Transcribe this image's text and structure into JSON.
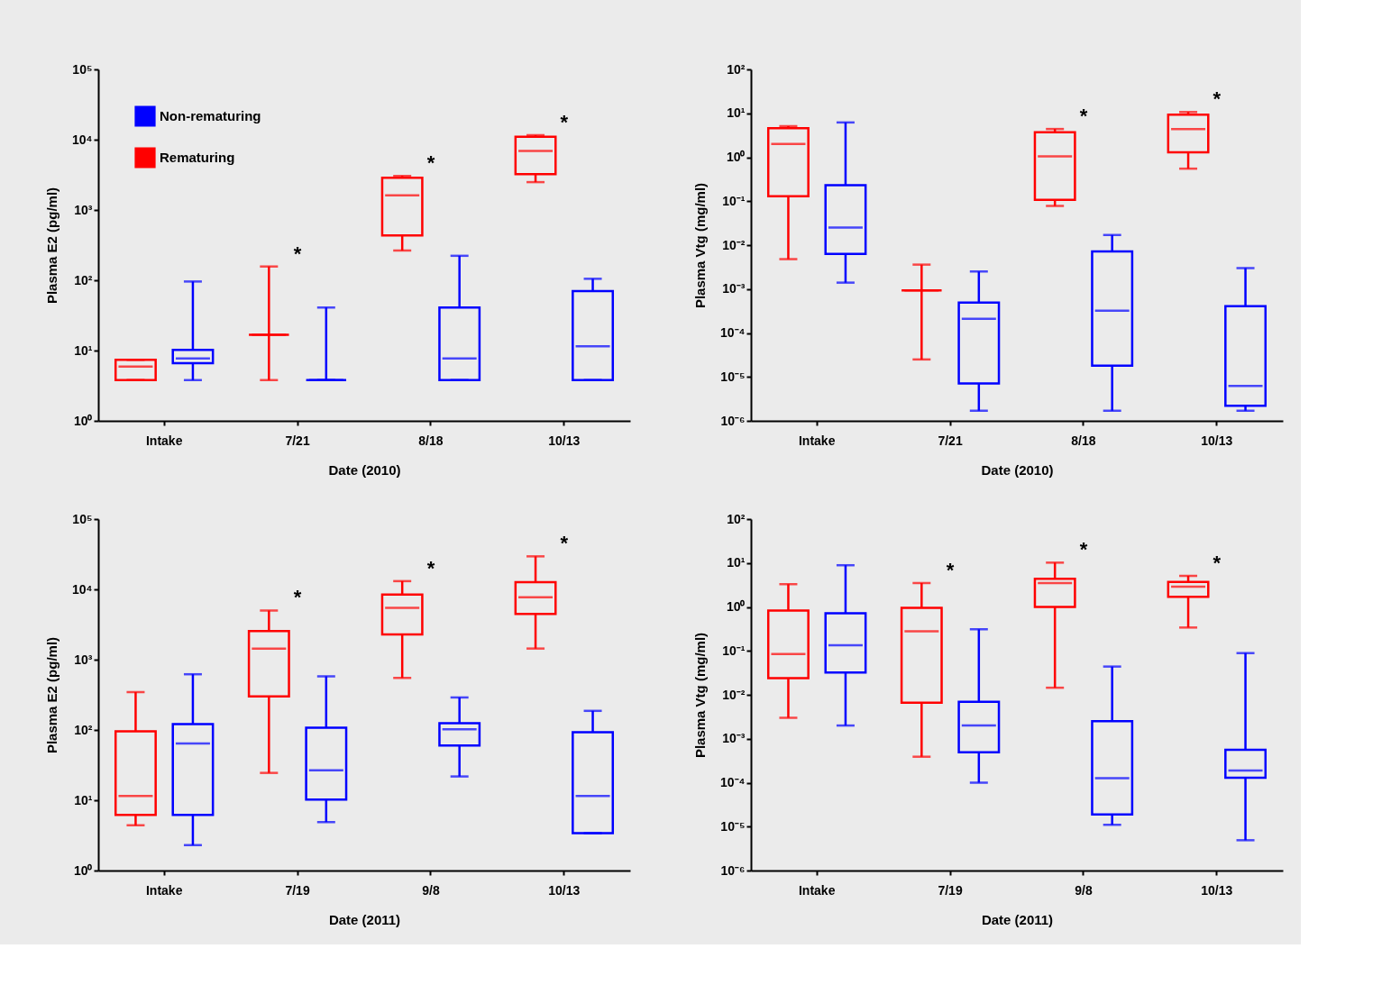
{
  "chart_data": [
    {
      "type": "box",
      "categories": [
        "Intake",
        "7/21",
        "8/18",
        "10/13"
      ],
      "xlabel": "Date (2010)",
      "ylabel": "Plasma E2 (pg/ml)",
      "log": true,
      "legend": "top left",
      "ylim": [
        1,
        100000
      ],
      "yticks": [
        {
          "value": 1,
          "label": "10⁰"
        },
        {
          "value": 10,
          "label": "10¹"
        },
        {
          "value": 100,
          "label": "10²"
        },
        {
          "value": 1000,
          "label": "10³"
        },
        {
          "value": 10000,
          "label": "10⁴"
        },
        {
          "value": 100000,
          "label": "10⁵"
        }
      ],
      "series": [
        {
          "name": "Non-rematuring",
          "color": "#0000ff",
          "boxes": [
            {
              "low": 3.8,
              "q1": 6.6,
              "median": 7.7,
              "q3": 10.2,
              "high": 96
            },
            {
              "low": 3.8,
              "q1": 3.8,
              "median": 3.8,
              "q3": 3.8,
              "high": 41
            },
            {
              "low": 3.8,
              "q1": 3.8,
              "median": 7.7,
              "q3": 41,
              "high": 223
            },
            {
              "low": 3.8,
              "q1": 3.8,
              "median": 11.5,
              "q3": 70,
              "high": 105
            }
          ]
        },
        {
          "name": "Rematuring",
          "color": "#ff0000",
          "boxes": [
            {
              "low": 3.8,
              "q1": 3.8,
              "median": 5.9,
              "q3": 7.4,
              "high": 7.4
            },
            {
              "low": 3.8,
              "q1": 16.8,
              "median": 16.8,
              "q3": 16.8,
              "high": 157
            },
            {
              "low": 265,
              "q1": 435,
              "median": 1610,
              "q3": 2880,
              "high": 3050
            },
            {
              "low": 2490,
              "q1": 3240,
              "median": 6900,
              "q3": 11000,
              "high": 11600
            }
          ]
        }
      ],
      "annotations": [
        "*",
        "*",
        "*"
      ]
    },
    {
      "type": "box",
      "categories": [
        "Intake",
        "7/21",
        "8/18",
        "10/13"
      ],
      "xlabel": "Date (2010)",
      "ylabel": "Plasma Vtg (mg/ml)",
      "log": true,
      "ylim": [
        1e-06,
        100
      ],
      "yticks": [
        {
          "value": 1e-06,
          "label": "10⁻⁶"
        },
        {
          "value": 1e-05,
          "label": "10⁻⁵"
        },
        {
          "value": 0.0001,
          "label": "10⁻⁴"
        },
        {
          "value": 0.001,
          "label": "10⁻³"
        },
        {
          "value": 0.01,
          "label": "10⁻²"
        },
        {
          "value": 0.1,
          "label": "10⁻¹"
        },
        {
          "value": 1,
          "label": "10⁰"
        },
        {
          "value": 10,
          "label": "10¹"
        },
        {
          "value": 100,
          "label": "10²"
        }
      ],
      "series": [
        {
          "color": "#0000ff",
          "boxes": [
            {
              "low": 0.0014,
              "q1": 0.0063,
              "median": 0.025,
              "q3": 0.23,
              "high": 6.2
            },
            {
              "low": 1.7e-06,
              "q1": 7.1e-06,
              "median": 0.00021,
              "q3": 0.00049,
              "high": 0.0025
            },
            {
              "low": 1.7e-06,
              "q1": 1.8e-05,
              "median": 0.00032,
              "q3": 0.0072,
              "high": 0.017
            },
            {
              "low": 1.7e-06,
              "q1": 2.2e-06,
              "median": 6.2e-06,
              "q3": 0.00041,
              "high": 0.003
            }
          ]
        },
        {
          "color": "#ff0000",
          "boxes": [
            {
              "low": 0.0048,
              "q1": 0.13,
              "median": 2.0,
              "q3": 4.6,
              "high": 5.1
            },
            {
              "low": 2.5e-05,
              "q1": 0.00093,
              "median": 0.00093,
              "q3": 0.00093,
              "high": 0.0036
            },
            {
              "low": 0.078,
              "q1": 0.107,
              "median": 1.05,
              "q3": 3.7,
              "high": 4.4
            },
            {
              "low": 0.55,
              "q1": 1.3,
              "median": 4.4,
              "q3": 9.3,
              "high": 10.7
            }
          ]
        }
      ],
      "annotations": [
        "*",
        "*"
      ]
    },
    {
      "type": "box",
      "categories": [
        "Intake",
        "7/19",
        "9/8",
        "10/13"
      ],
      "xlabel": "Date (2011)",
      "ylabel": "Plasma E2 (pg/ml)",
      "log": true,
      "ylim": [
        1,
        100000
      ],
      "yticks": [
        {
          "value": 1,
          "label": "10⁰"
        },
        {
          "value": 10,
          "label": "10¹"
        },
        {
          "value": 100,
          "label": "10²"
        },
        {
          "value": 1000,
          "label": "10³"
        },
        {
          "value": 10000,
          "label": "10⁴"
        },
        {
          "value": 100000,
          "label": "10⁵"
        }
      ],
      "series": [
        {
          "color": "#0000ff",
          "boxes": [
            {
              "low": 2.3,
              "q1": 6.2,
              "median": 64,
              "q3": 121,
              "high": 620
            },
            {
              "low": 4.9,
              "q1": 10.2,
              "median": 26.7,
              "q3": 108,
              "high": 580
            },
            {
              "low": 21.8,
              "q1": 60,
              "median": 102,
              "q3": 125,
              "high": 290
            },
            {
              "low": 3.4,
              "q1": 3.4,
              "median": 11.5,
              "q3": 93,
              "high": 187
            }
          ]
        },
        {
          "color": "#ff0000",
          "boxes": [
            {
              "low": 4.4,
              "q1": 6.2,
              "median": 11.5,
              "q3": 96,
              "high": 345
            },
            {
              "low": 24.5,
              "q1": 300,
              "median": 1440,
              "q3": 2560,
              "high": 5000
            },
            {
              "low": 550,
              "q1": 2280,
              "median": 5460,
              "q3": 8450,
              "high": 13100
            },
            {
              "low": 1440,
              "q1": 4460,
              "median": 7740,
              "q3": 12700,
              "high": 29500
            }
          ]
        }
      ],
      "annotations": [
        "*",
        "*",
        "*"
      ]
    },
    {
      "type": "box",
      "categories": [
        "Intake",
        "7/19",
        "9/8",
        "10/13"
      ],
      "xlabel": "Date (2011)",
      "ylabel": "Plasma Vtg (mg/ml)",
      "log": true,
      "ylim": [
        1e-06,
        100
      ],
      "yticks": [
        {
          "value": 1e-06,
          "label": "10⁻⁶"
        },
        {
          "value": 1e-05,
          "label": "10⁻⁵"
        },
        {
          "value": 0.0001,
          "label": "10⁻⁴"
        },
        {
          "value": 0.001,
          "label": "10⁻³"
        },
        {
          "value": 0.01,
          "label": "10⁻²"
        },
        {
          "value": 0.1,
          "label": "10⁻¹"
        },
        {
          "value": 1,
          "label": "10⁰"
        },
        {
          "value": 10,
          "label": "10¹"
        },
        {
          "value": 100,
          "label": "10²"
        }
      ],
      "series": [
        {
          "color": "#0000ff",
          "boxes": [
            {
              "low": 0.002,
              "q1": 0.032,
              "median": 0.135,
              "q3": 0.72,
              "high": 8.9
            },
            {
              "low": 0.0001,
              "q1": 0.00049,
              "median": 0.002,
              "q3": 0.0069,
              "high": 0.31
            },
            {
              "low": 1.1e-05,
              "q1": 1.9e-05,
              "median": 0.000126,
              "q3": 0.0025,
              "high": 0.044
            },
            {
              "low": 4.9e-06,
              "q1": 0.00013,
              "median": 0.00019,
              "q3": 0.00056,
              "high": 0.089
            }
          ]
        },
        {
          "color": "#ff0000",
          "boxes": [
            {
              "low": 0.003,
              "q1": 0.024,
              "median": 0.085,
              "q3": 0.83,
              "high": 3.3
            },
            {
              "low": 0.00039,
              "q1": 0.0066,
              "median": 0.28,
              "q3": 0.95,
              "high": 3.5
            },
            {
              "low": 0.0145,
              "q1": 1.0,
              "median": 3.5,
              "q3": 4.4,
              "high": 10.2
            },
            {
              "low": 0.34,
              "q1": 1.7,
              "median": 2.9,
              "q3": 3.7,
              "high": 5.1
            }
          ]
        }
      ],
      "annotations": [
        "*",
        "*",
        "*"
      ]
    }
  ]
}
